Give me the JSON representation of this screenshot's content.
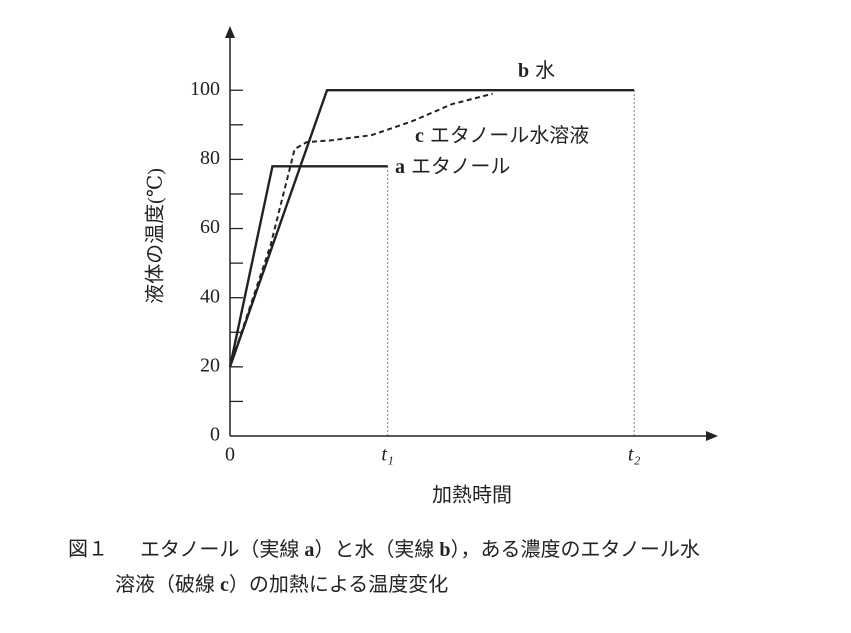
{
  "chart_data": {
    "type": "line",
    "x_label": "加熱時間",
    "y_label": "液体の温度(℃)",
    "xlim": [
      0,
      12
    ],
    "xticks": [
      0,
      {
        "value": 3.9,
        "label": "t₁"
      },
      {
        "value": 10,
        "label": "t₂"
      }
    ],
    "ylim": [
      0,
      118
    ],
    "yticks": [
      0,
      20,
      40,
      60,
      80,
      100
    ],
    "minor_yticks": [
      10,
      30,
      50,
      70,
      90
    ],
    "series": [
      {
        "letter": "a",
        "name": "エタノール",
        "color": "#222222",
        "dashed": false,
        "x": [
          0,
          1.05,
          3.9
        ],
        "values": [
          20,
          78,
          78
        ]
      },
      {
        "letter": "b",
        "name": "水",
        "color": "#222222",
        "dashed": false,
        "x": [
          0,
          2.4,
          10
        ],
        "values": [
          20,
          100,
          100
        ]
      },
      {
        "letter": "c",
        "name": "エタノール水溶液",
        "color": "#222222",
        "dashed": true,
        "x": [
          0,
          1.0,
          1.6,
          1.9,
          2.5,
          3.5,
          4.5,
          5.5,
          6.5
        ],
        "values": [
          20,
          55,
          83,
          85,
          85.5,
          87,
          91,
          96,
          99
        ]
      }
    ],
    "caption": {
      "label": "図１",
      "lines": [
        [
          "エタノール（実線 ",
          "a",
          "）と水（実線 ",
          "b",
          "），ある濃度のエタノール水"
        ],
        [
          "溶液（破線 ",
          "c",
          "）の加熱による温度変化"
        ]
      ]
    }
  }
}
